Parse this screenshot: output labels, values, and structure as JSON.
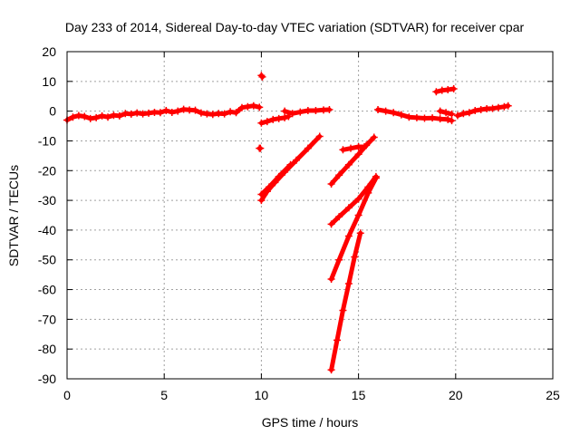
{
  "chart_data": {
    "type": "scatter",
    "title": "Day 233 of 2014, Sidereal Day-to-day VTEC variation (SDTVAR) for receiver cpar",
    "xlabel": "GPS time / hours",
    "ylabel": "SDTVAR / TECUs",
    "xlim": [
      0,
      25
    ],
    "ylim": [
      -90,
      20
    ],
    "x_ticks": [
      0,
      5,
      10,
      15,
      20,
      25
    ],
    "y_ticks": [
      20,
      10,
      0,
      -10,
      -20,
      -30,
      -40,
      -50,
      -60,
      -70,
      -80,
      -90
    ],
    "grid": true,
    "marker_color": "#ff0000",
    "series": [
      {
        "segments": [
          [
            [
              0.0,
              -3.0
            ],
            [
              0.3,
              -2.0
            ],
            [
              0.6,
              -1.5
            ],
            [
              0.9,
              -1.8
            ],
            [
              1.2,
              -2.5
            ],
            [
              1.5,
              -2.2
            ],
            [
              1.8,
              -1.6
            ],
            [
              2.1,
              -2.0
            ],
            [
              2.4,
              -1.4
            ],
            [
              2.7,
              -1.6
            ],
            [
              3.0,
              -0.8
            ],
            [
              3.3,
              -1.0
            ],
            [
              3.6,
              -0.6
            ],
            [
              3.9,
              -0.9
            ],
            [
              4.2,
              -0.7
            ],
            [
              4.5,
              -0.4
            ],
            [
              4.8,
              -0.5
            ],
            [
              5.1,
              0.2
            ],
            [
              5.4,
              -0.4
            ],
            [
              5.7,
              0.0
            ],
            [
              6.0,
              0.6
            ],
            [
              6.3,
              0.4
            ],
            [
              6.6,
              0.3
            ],
            [
              6.9,
              -0.6
            ],
            [
              7.2,
              -0.9
            ],
            [
              7.5,
              -1.1
            ],
            [
              7.8,
              -0.8
            ],
            [
              8.1,
              -0.9
            ],
            [
              8.4,
              -0.2
            ],
            [
              8.7,
              -0.5
            ],
            [
              9.0,
              1.2
            ],
            [
              9.3,
              1.5
            ],
            [
              9.6,
              1.8
            ],
            [
              9.9,
              1.3
            ]
          ],
          [
            [
              9.9,
              -12.5
            ],
            [
              9.95,
              -12.5
            ]
          ],
          [
            [
              10.0,
              12.0
            ],
            [
              10.05,
              11.5
            ]
          ],
          [
            [
              10.0,
              -4.0
            ],
            [
              10.3,
              -3.5
            ],
            [
              10.6,
              -2.8
            ],
            [
              10.9,
              -2.5
            ],
            [
              11.2,
              -2.2
            ],
            [
              11.4,
              -1.8
            ]
          ],
          [
            [
              11.2,
              0.0
            ],
            [
              11.6,
              -0.8
            ],
            [
              12.0,
              -0.3
            ],
            [
              12.4,
              0.2
            ],
            [
              12.8,
              0.2
            ],
            [
              13.2,
              0.4
            ],
            [
              13.5,
              0.5
            ]
          ],
          [
            [
              10.0,
              -30.0
            ],
            [
              10.3,
              -27.0
            ],
            [
              10.7,
              -24.0
            ],
            [
              11.2,
              -20.5
            ],
            [
              11.8,
              -16.5
            ],
            [
              12.4,
              -12.5
            ],
            [
              13.0,
              -8.5
            ]
          ],
          [
            [
              10.0,
              -28.0
            ],
            [
              10.4,
              -25.5
            ],
            [
              10.9,
              -22.0
            ],
            [
              11.5,
              -18.0
            ]
          ],
          [
            [
              13.6,
              -24.5
            ],
            [
              14.0,
              -21.5
            ],
            [
              14.5,
              -18.0
            ],
            [
              15.0,
              -14.5
            ],
            [
              15.4,
              -11.5
            ],
            [
              15.8,
              -8.8
            ]
          ],
          [
            [
              14.2,
              -13.0
            ],
            [
              14.6,
              -12.5
            ],
            [
              15.0,
              -12.0
            ],
            [
              15.3,
              -12.0
            ]
          ],
          [
            [
              13.6,
              -38.0
            ],
            [
              14.0,
              -35.5
            ],
            [
              14.5,
              -32.5
            ],
            [
              15.0,
              -29.5
            ],
            [
              15.5,
              -25.5
            ],
            [
              15.9,
              -22.0
            ]
          ],
          [
            [
              13.6,
              -56.5
            ],
            [
              14.0,
              -50.0
            ],
            [
              14.5,
              -42.0
            ],
            [
              15.0,
              -35.0
            ],
            [
              15.5,
              -27.5
            ],
            [
              15.9,
              -22.5
            ]
          ],
          [
            [
              13.6,
              -87.0
            ],
            [
              13.9,
              -77.0
            ],
            [
              14.2,
              -67.0
            ],
            [
              14.5,
              -58.0
            ],
            [
              14.8,
              -49.0
            ],
            [
              15.1,
              -41.0
            ]
          ],
          [
            [
              16.0,
              0.5
            ],
            [
              16.4,
              0.0
            ],
            [
              16.8,
              -0.5
            ],
            [
              17.2,
              -1.2
            ],
            [
              17.6,
              -2.0
            ],
            [
              18.0,
              -2.2
            ],
            [
              18.4,
              -2.4
            ],
            [
              18.8,
              -2.3
            ],
            [
              19.2,
              -2.6
            ],
            [
              19.6,
              -2.8
            ],
            [
              19.8,
              -3.2
            ]
          ],
          [
            [
              19.2,
              0.0
            ],
            [
              19.5,
              -0.5
            ],
            [
              19.8,
              -1.0
            ]
          ],
          [
            [
              19.0,
              6.5
            ],
            [
              19.3,
              7.0
            ],
            [
              19.6,
              7.2
            ],
            [
              19.9,
              7.5
            ]
          ],
          [
            [
              20.1,
              -1.5
            ],
            [
              20.4,
              -0.8
            ],
            [
              20.7,
              -0.5
            ],
            [
              21.0,
              0.2
            ],
            [
              21.3,
              0.5
            ],
            [
              21.6,
              0.8
            ],
            [
              21.9,
              0.9
            ],
            [
              22.2,
              1.2
            ],
            [
              22.5,
              1.5
            ],
            [
              22.7,
              1.8
            ]
          ]
        ]
      }
    ]
  }
}
